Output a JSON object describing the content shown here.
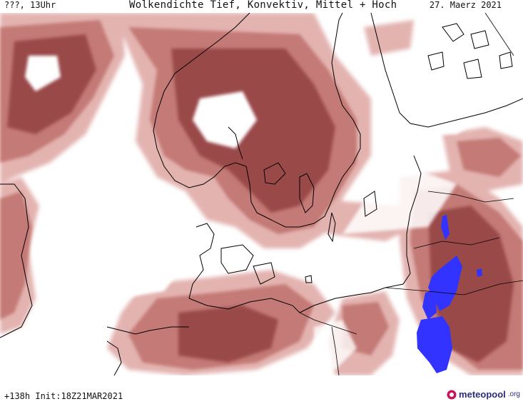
{
  "header": {
    "left": "???, 13Uhr",
    "title": "Wolkendichte  Tief, Konvektiv, Mittel + Hoch",
    "date": "27. Maerz 2021"
  },
  "footer": {
    "left": "+138h  Init:18Z21MAR2021"
  },
  "logo": {
    "name": "meteopool",
    "tld": ".org",
    "icon": "meteopool-logo-icon"
  },
  "colors": {
    "cloud_light": "#e3b3b0",
    "cloud_mid": "#c47a76",
    "cloud_dark": "#9a4a48",
    "precip_blue": "#3333ff",
    "coast": "#000000",
    "background": "#ffffff"
  }
}
